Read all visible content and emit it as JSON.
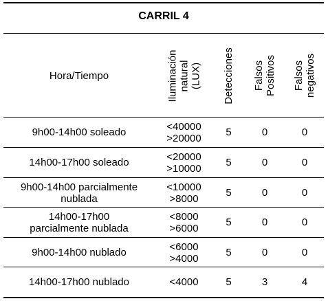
{
  "table": {
    "title": "CARRIL 4",
    "headers": {
      "hora": "Hora/Tiempo",
      "iluminacion": [
        "Iluminación",
        "natural",
        "(LUX)"
      ],
      "detecciones": "Detecciones",
      "falsos_positivos": [
        "Falsos",
        "Positivos"
      ],
      "falsos_negativos": [
        "Falsos",
        "negativos"
      ]
    },
    "rows": [
      {
        "hora": [
          "9h00-14h00 soleado"
        ],
        "lux": [
          "<40000",
          ">20000"
        ],
        "det": "5",
        "fp": "0",
        "fn": "0"
      },
      {
        "hora": [
          "14h00-17h00 soleado"
        ],
        "lux": [
          "<20000",
          ">10000"
        ],
        "det": "5",
        "fp": "0",
        "fn": "0"
      },
      {
        "hora": [
          "9h00-14h00 parcialmente",
          "nublada"
        ],
        "lux": [
          "<10000",
          ">8000"
        ],
        "det": "5",
        "fp": "0",
        "fn": "0"
      },
      {
        "hora": [
          "14h00-17h00",
          "parcialmente nublada"
        ],
        "lux": [
          "<8000",
          ">6000"
        ],
        "det": "5",
        "fp": "0",
        "fn": "0"
      },
      {
        "hora": [
          "9h00-14h00 nublado"
        ],
        "lux": [
          "<6000",
          ">4000"
        ],
        "det": "5",
        "fp": "0",
        "fn": "0"
      },
      {
        "hora": [
          "14h00-17h00 nublado"
        ],
        "lux": [
          "<4000"
        ],
        "det": "5",
        "fp": "3",
        "fn": "4"
      }
    ]
  }
}
